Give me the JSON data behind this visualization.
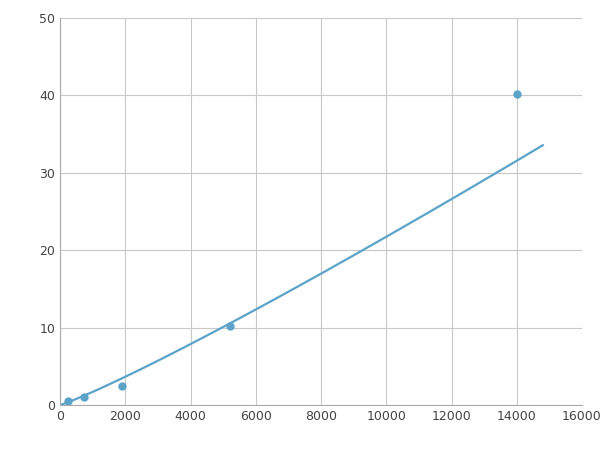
{
  "x_data": [
    250,
    750,
    1900,
    5200,
    14000
  ],
  "y_data": [
    0.5,
    1.0,
    2.5,
    10.2,
    40.2
  ],
  "line_color": "#5BA3C9",
  "marker_color": "#5BA3C9",
  "marker_style": "o",
  "marker_size": 5,
  "line_width": 1.6,
  "xlim": [
    0,
    16000
  ],
  "ylim": [
    0,
    50
  ],
  "xticks": [
    0,
    2000,
    4000,
    6000,
    8000,
    10000,
    12000,
    14000,
    16000
  ],
  "yticks": [
    0,
    10,
    20,
    30,
    40,
    50
  ],
  "grid_color": "#C8C8C8",
  "background_color": "#FFFFFF",
  "fig_width": 6.0,
  "fig_height": 4.5,
  "dpi": 100
}
